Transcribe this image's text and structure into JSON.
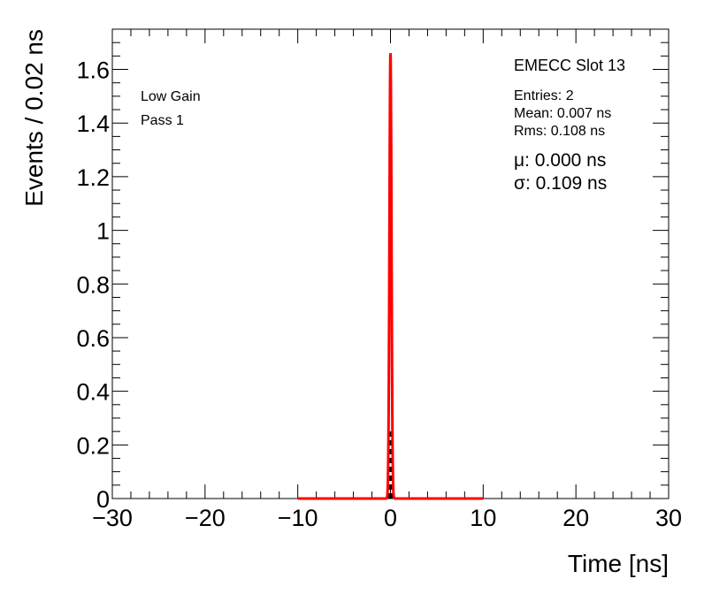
{
  "chart_data": {
    "type": "histogram",
    "xlabel": "Time [ns]",
    "ylabel": "Events / 0.02 ns",
    "xlim": [
      -30,
      30
    ],
    "ylim": [
      0,
      1.75
    ],
    "x_ticks": [
      -30,
      -20,
      -10,
      0,
      10,
      20,
      30
    ],
    "x_tick_labels": [
      "−30",
      "−20",
      "−10",
      "0",
      "10",
      "20",
      "30"
    ],
    "y_ticks": [
      0,
      0.2,
      0.4,
      0.6,
      0.8,
      1,
      1.2,
      1.4,
      1.6
    ],
    "y_tick_labels": [
      "0",
      "0.2",
      "0.4",
      "0.6",
      "0.8",
      "1",
      "1.2",
      "1.4",
      "1.6"
    ],
    "histogram": {
      "bin_width": 0.02,
      "bars": [
        {
          "x": -0.1,
          "value": 0.25
        },
        {
          "x": 0.1,
          "value": 0.25
        }
      ],
      "color": "#000000"
    },
    "fit": {
      "mu": 0.0,
      "sigma": 0.109,
      "amplitude": 1.66,
      "range": [
        -10,
        10
      ],
      "color": "#ff0000"
    },
    "labels_left": [
      "Low Gain",
      "Pass 1"
    ],
    "stats": {
      "title": "EMECC Slot 13",
      "entries": "Entries: 2",
      "mean": "Mean: 0.007 ns",
      "rms": "Rms: 0.108 ns",
      "mu_text": "μ: 0.000 ns",
      "sigma_text": "σ: 0.109 ns"
    }
  }
}
